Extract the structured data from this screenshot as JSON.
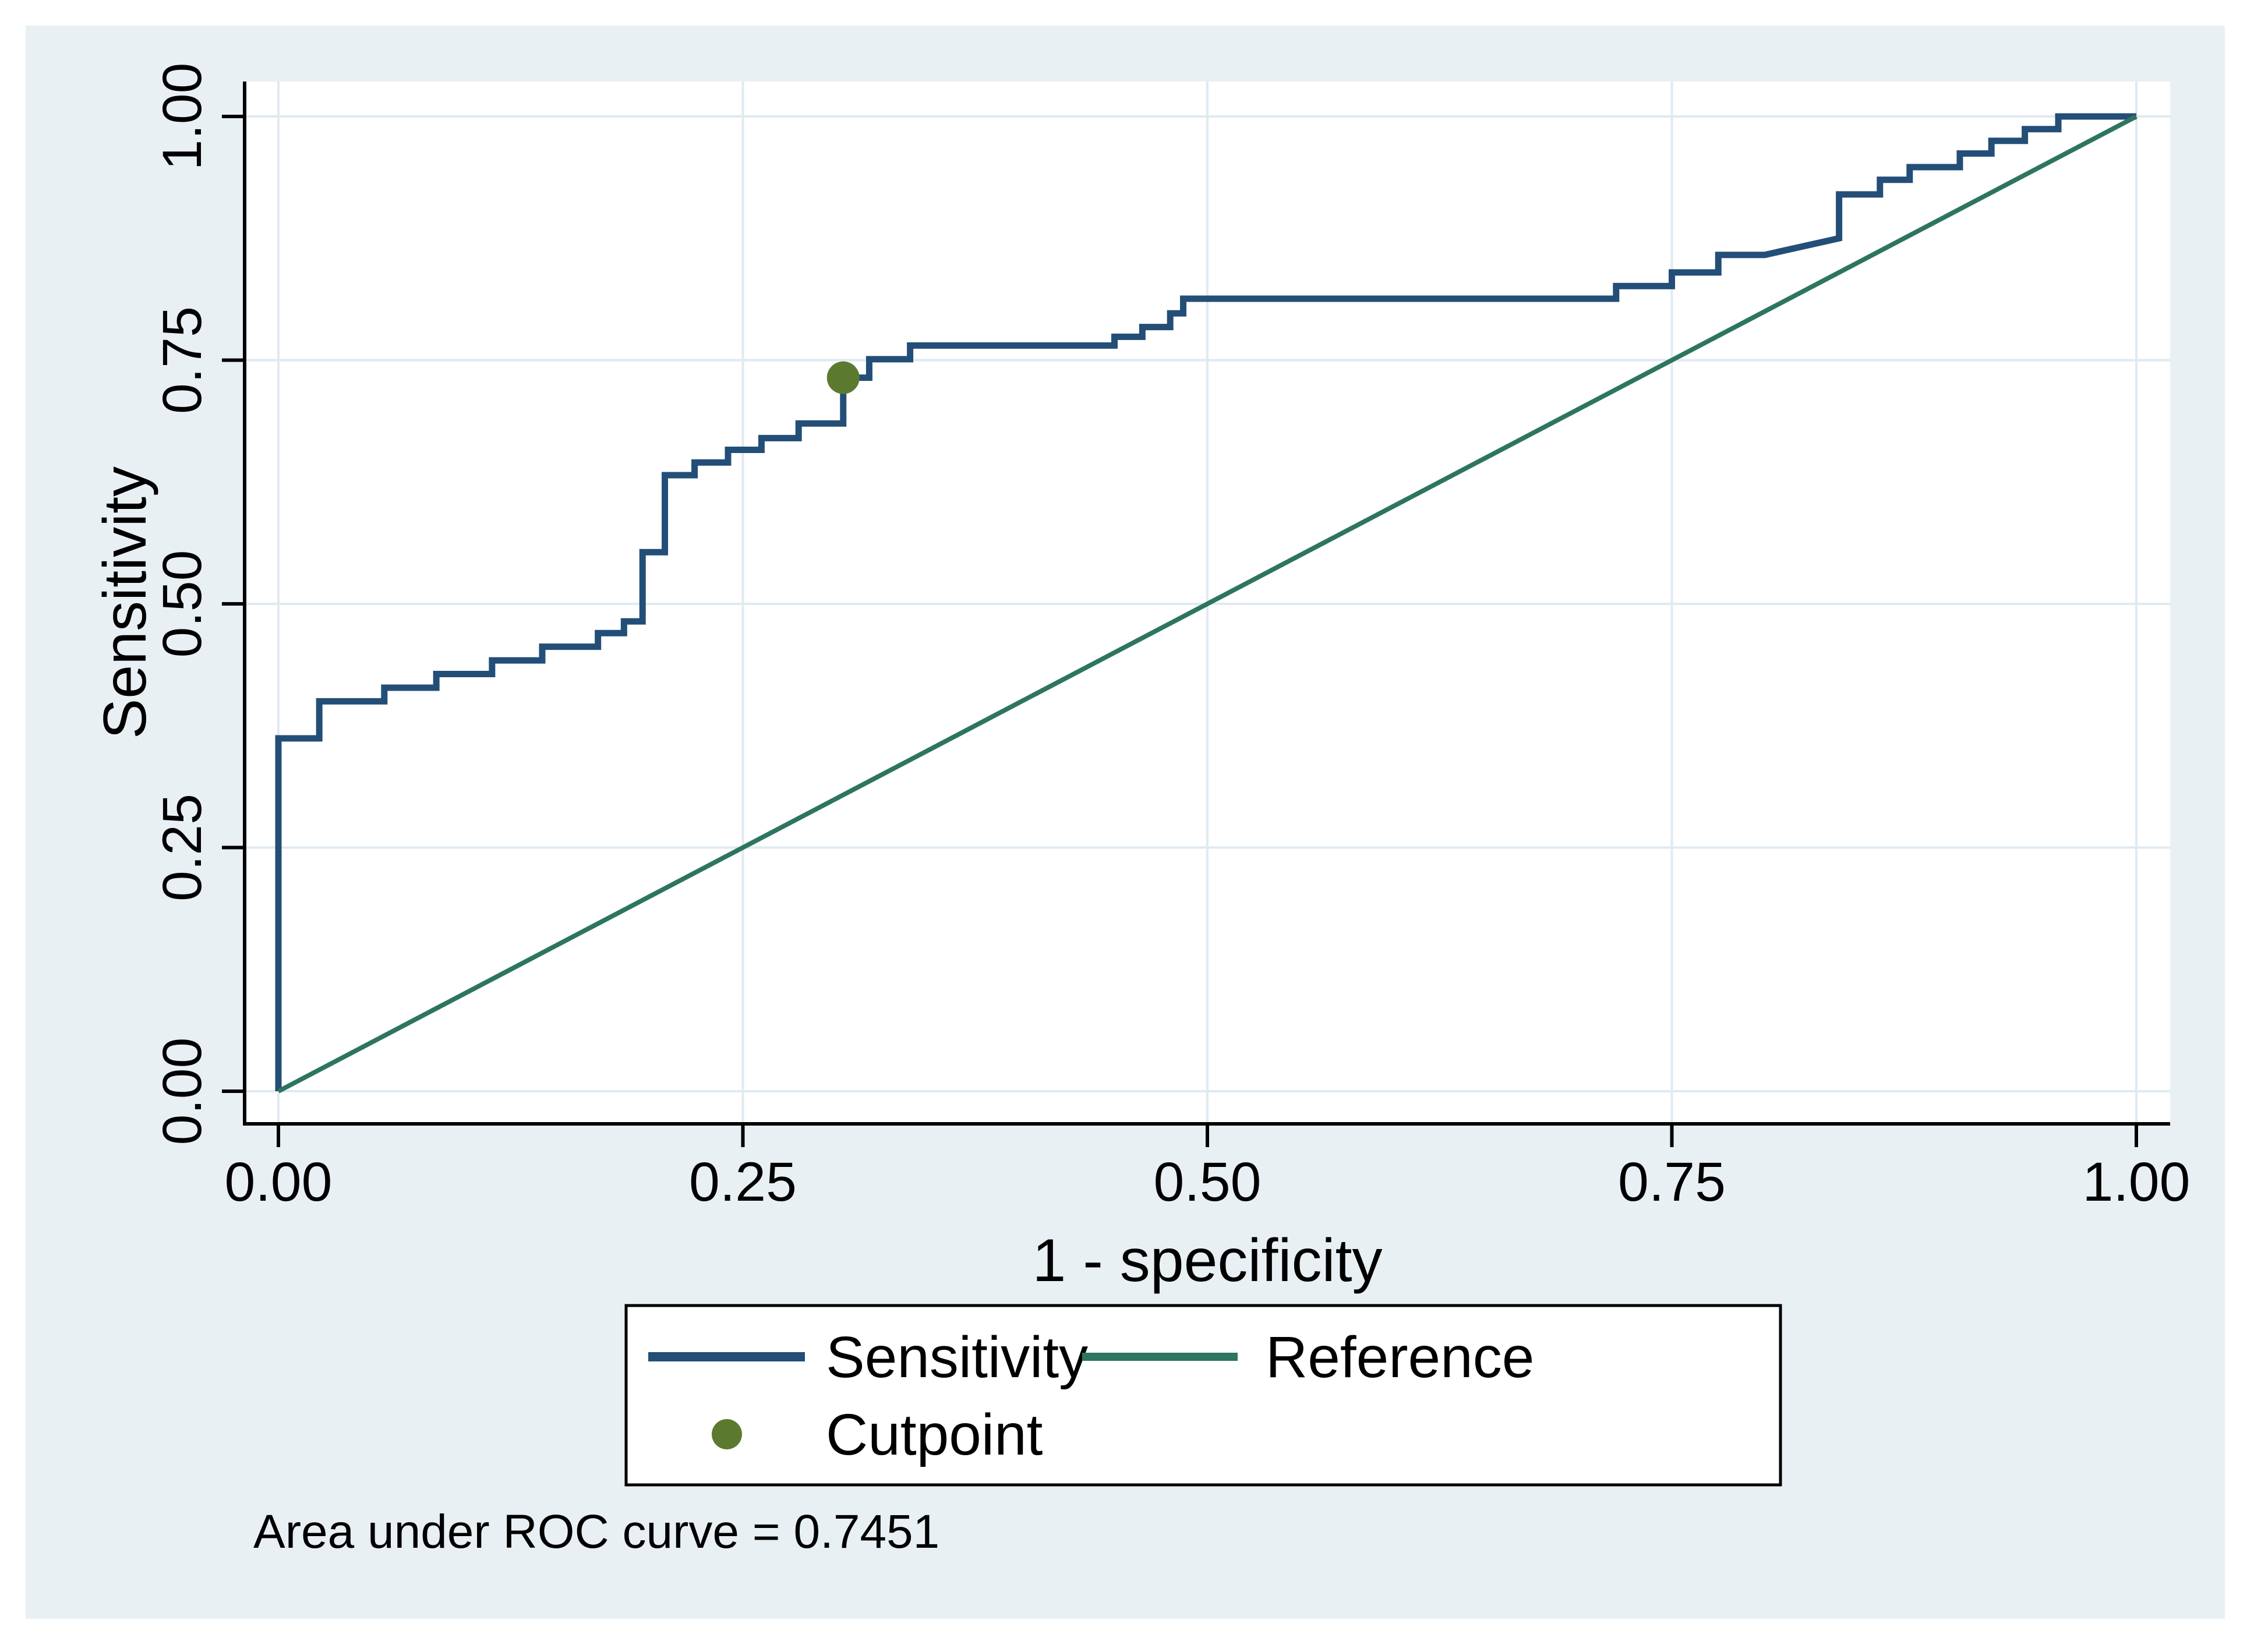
{
  "figure": {
    "note": "Area under ROC curve = 0.7451",
    "background_color": "#ffffff",
    "graph_background_color": "#e9f0f4",
    "plot_background_color": "#ffffff",
    "gridline_color": "#dfeaf1",
    "axis_color": "#000000"
  },
  "chart_data": {
    "type": "line",
    "subtype": "roc-step",
    "title": "",
    "xlabel": "1 - specificity",
    "ylabel": "Sensitivity",
    "xlim": [
      0,
      1
    ],
    "ylim": [
      0,
      1
    ],
    "grid": true,
    "legend_position": "bottom-center",
    "auc_value": 0.7451,
    "xticks": {
      "values": [
        0,
        0.25,
        0.5,
        0.75,
        1
      ],
      "labels": [
        "0.00",
        "0.25",
        "0.50",
        "0.75",
        "1.00"
      ]
    },
    "yticks": {
      "values": [
        0,
        0.25,
        0.5,
        0.75,
        1
      ],
      "labels": [
        "0.00",
        "0.25",
        "0.50",
        "0.75",
        "1.00"
      ]
    },
    "series": [
      {
        "name": "Sensitivity",
        "kind": "step-line",
        "color": "#234e77",
        "stroke_width": 11,
        "points": [
          [
            0.0,
            0.0
          ],
          [
            0.0,
            0.362
          ],
          [
            0.022,
            0.362
          ],
          [
            0.022,
            0.4
          ],
          [
            0.057,
            0.4
          ],
          [
            0.057,
            0.414
          ],
          [
            0.085,
            0.414
          ],
          [
            0.085,
            0.428
          ],
          [
            0.115,
            0.428
          ],
          [
            0.115,
            0.442
          ],
          [
            0.142,
            0.442
          ],
          [
            0.142,
            0.456
          ],
          [
            0.172,
            0.456
          ],
          [
            0.172,
            0.47
          ],
          [
            0.186,
            0.47
          ],
          [
            0.186,
            0.482
          ],
          [
            0.196,
            0.482
          ],
          [
            0.196,
            0.553
          ],
          [
            0.208,
            0.553
          ],
          [
            0.208,
            0.632
          ],
          [
            0.224,
            0.632
          ],
          [
            0.224,
            0.645
          ],
          [
            0.242,
            0.645
          ],
          [
            0.242,
            0.658
          ],
          [
            0.26,
            0.658
          ],
          [
            0.26,
            0.67
          ],
          [
            0.28,
            0.67
          ],
          [
            0.28,
            0.685
          ],
          [
            0.304,
            0.685
          ],
          [
            0.304,
            0.732
          ],
          [
            0.318,
            0.732
          ],
          [
            0.318,
            0.751
          ],
          [
            0.34,
            0.751
          ],
          [
            0.34,
            0.765
          ],
          [
            0.45,
            0.765
          ],
          [
            0.45,
            0.774
          ],
          [
            0.465,
            0.774
          ],
          [
            0.465,
            0.784
          ],
          [
            0.48,
            0.784
          ],
          [
            0.48,
            0.798
          ],
          [
            0.487,
            0.798
          ],
          [
            0.487,
            0.813
          ],
          [
            0.72,
            0.813
          ],
          [
            0.72,
            0.826
          ],
          [
            0.75,
            0.826
          ],
          [
            0.75,
            0.84
          ],
          [
            0.775,
            0.84
          ],
          [
            0.775,
            0.858
          ],
          [
            0.8,
            0.858
          ],
          [
            0.84,
            0.875
          ],
          [
            0.84,
            0.92
          ],
          [
            0.862,
            0.92
          ],
          [
            0.862,
            0.935
          ],
          [
            0.878,
            0.935
          ],
          [
            0.878,
            0.948
          ],
          [
            0.905,
            0.948
          ],
          [
            0.905,
            0.962
          ],
          [
            0.922,
            0.962
          ],
          [
            0.922,
            0.975
          ],
          [
            0.94,
            0.975
          ],
          [
            0.94,
            0.987
          ],
          [
            0.958,
            0.987
          ],
          [
            0.958,
            1.0
          ],
          [
            1.0,
            1.0
          ]
        ]
      },
      {
        "name": "Reference",
        "kind": "line",
        "color": "#2d7561",
        "stroke_width": 8,
        "points": [
          [
            0,
            0
          ],
          [
            1,
            1
          ]
        ]
      },
      {
        "name": "Cutpoint",
        "kind": "marker",
        "color": "#5c7a2f",
        "marker_radius": 28,
        "points": [
          [
            0.304,
            0.732
          ]
        ]
      }
    ]
  }
}
